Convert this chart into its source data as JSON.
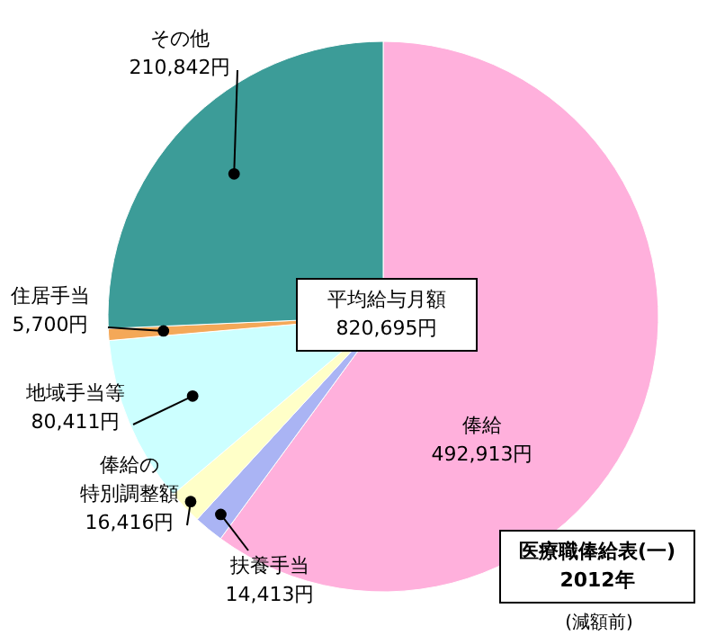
{
  "chart_data": {
    "type": "pie",
    "title": "医療職俸給表(一)",
    "subtitle": "2012年",
    "categories": [
      "俸給",
      "扶養手当",
      "俸給の特別調整額",
      "地域手当等",
      "住居手当",
      "その他"
    ],
    "values": [
      492913,
      14413,
      16416,
      80411,
      5700,
      210842
    ],
    "value_labels": [
      "492,913円",
      "14,413円",
      "16,416円",
      "80,411円",
      "5,700円",
      "210,842円"
    ],
    "colors": [
      "#ffb0dc",
      "#aab4f4",
      "#ffffc8",
      "#ccffff",
      "#f4a858",
      "#3c9c98"
    ],
    "annotations": [
      "平均給与月額\n820,695円",
      "(減額前)"
    ]
  }
}
